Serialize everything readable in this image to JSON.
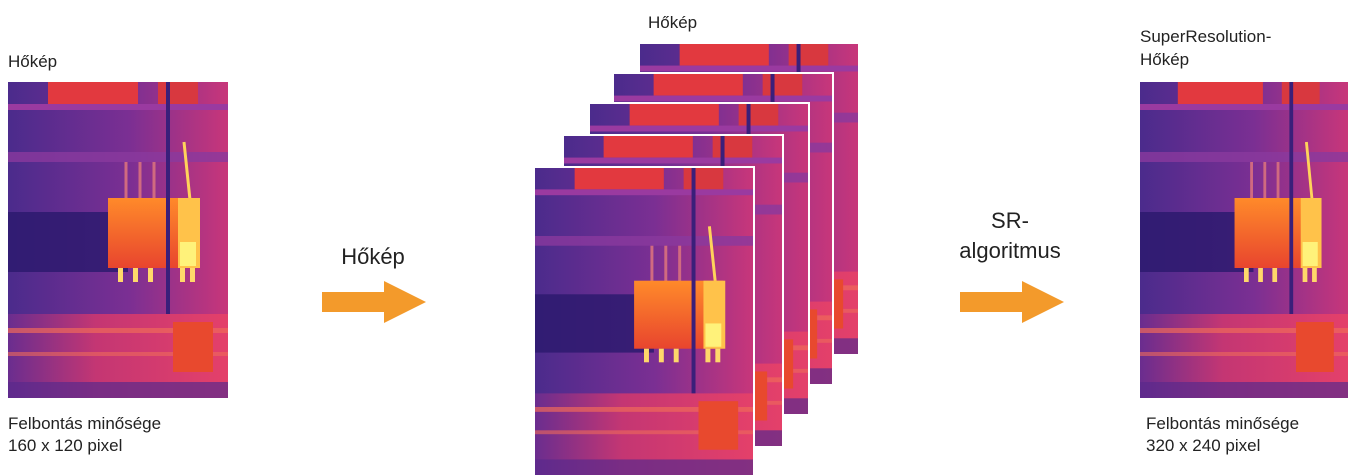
{
  "diagram": {
    "input": {
      "title": "Hőkép",
      "caption_line1": "Felbontás minősége",
      "caption_line2": "160 x 120 pixel"
    },
    "arrow1": {
      "label": "Hőkép"
    },
    "stack": {
      "title": "Hőkép",
      "frame_count": 5
    },
    "arrow2": {
      "label_line1": "SR-",
      "label_line2": "algoritmus"
    },
    "output": {
      "title_line1": "SuperResolution-",
      "title_line2": "Hőkép",
      "caption_line1": "Felbontás minősége",
      "caption_line2": "320 x 240 pixel"
    },
    "colors": {
      "arrow": "#f39a2b",
      "thermal_cold": "#4a2a8a",
      "thermal_mid": "#c8306e",
      "thermal_hot": "#ff7a2a",
      "thermal_peak": "#fff27a"
    }
  }
}
